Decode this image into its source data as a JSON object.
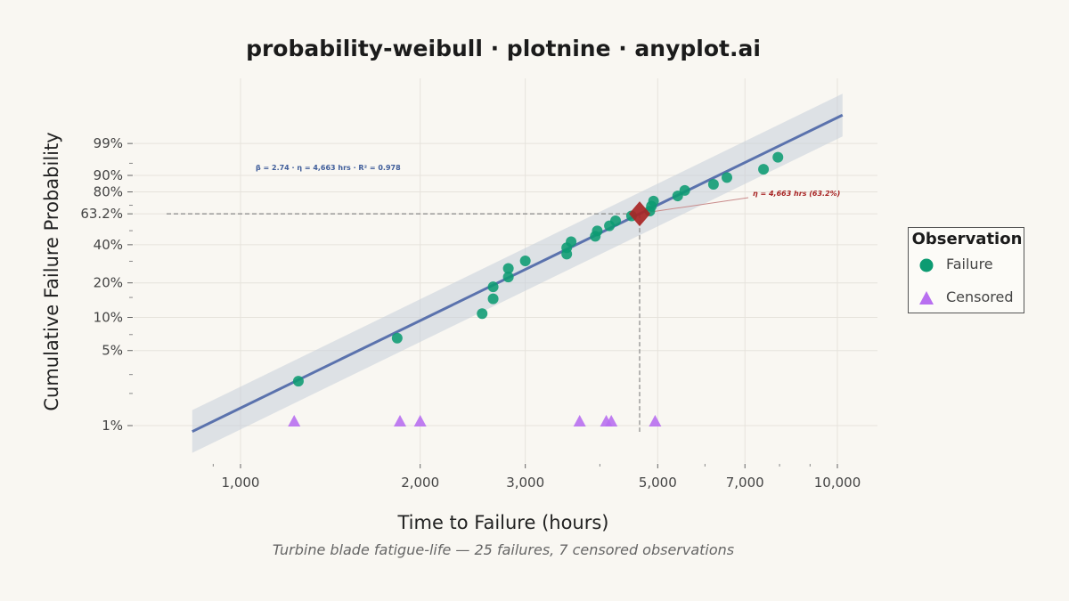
{
  "chart_data": {
    "type": "scatter",
    "title": "probability-weibull · plotnine · anyplot.ai",
    "subtitle": "Turbine blade fatigue-life — 25 failures, 7 censored observations",
    "xlabel": "Time to Failure (hours)",
    "ylabel": "Cumulative Failure Probability",
    "x_scale": "log",
    "y_scale": "weibull",
    "xlim": [
      820,
      10500
    ],
    "ylim_percent": [
      0.5,
      99.9
    ],
    "x_ticks": [
      1000,
      2000,
      3000,
      5000,
      7000,
      10000
    ],
    "x_tick_labels": [
      "1,000",
      "2,000",
      "3,000",
      "5,000",
      "7,000",
      "10,000"
    ],
    "y_ticks": [
      1,
      5,
      10,
      20,
      40,
      63.2,
      80,
      90,
      99
    ],
    "y_tick_labels": [
      "1%",
      "5%",
      "10%",
      "20%",
      "40%",
      "63.2%",
      "80%",
      "90%",
      "99%"
    ],
    "grid": true,
    "legend_title": "Observation",
    "legend_position": "right",
    "colors": {
      "failure": "#0d9b72",
      "censored": "#b86ff0",
      "fit_line": "#5a72ad",
      "band": "#c7cfdb",
      "eta_marker": "#a82525",
      "stats_text": "#3f5d9a",
      "eta_text": "#a82525"
    },
    "series": [
      {
        "name": "Failure",
        "marker": "circle",
        "points": [
          {
            "x": 1250,
            "y": 2.6
          },
          {
            "x": 1830,
            "y": 6.5
          },
          {
            "x": 2540,
            "y": 10.8
          },
          {
            "x": 2650,
            "y": 14.6
          },
          {
            "x": 2650,
            "y": 18.5
          },
          {
            "x": 2810,
            "y": 22.4
          },
          {
            "x": 2810,
            "y": 26.3
          },
          {
            "x": 3000,
            "y": 30.2
          },
          {
            "x": 3520,
            "y": 34.1
          },
          {
            "x": 3520,
            "y": 38.0
          },
          {
            "x": 3580,
            "y": 42.0
          },
          {
            "x": 3930,
            "y": 45.9
          },
          {
            "x": 3960,
            "y": 49.8
          },
          {
            "x": 4150,
            "y": 53.7
          },
          {
            "x": 4250,
            "y": 57.6
          },
          {
            "x": 4520,
            "y": 61.5
          },
          {
            "x": 4850,
            "y": 65.4
          },
          {
            "x": 4880,
            "y": 69.3
          },
          {
            "x": 4920,
            "y": 73.2
          },
          {
            "x": 5400,
            "y": 77.1
          },
          {
            "x": 5550,
            "y": 81.0
          },
          {
            "x": 6200,
            "y": 85.0
          },
          {
            "x": 6530,
            "y": 88.9
          },
          {
            "x": 7520,
            "y": 92.8
          },
          {
            "x": 7950,
            "y": 96.7
          }
        ]
      },
      {
        "name": "Censored",
        "marker": "triangle",
        "points": [
          {
            "x": 1230,
            "y": 1.1
          },
          {
            "x": 1850,
            "y": 1.1
          },
          {
            "x": 2000,
            "y": 1.1
          },
          {
            "x": 3700,
            "y": 1.1
          },
          {
            "x": 4100,
            "y": 1.1
          },
          {
            "x": 4180,
            "y": 1.1
          },
          {
            "x": 4950,
            "y": 1.1
          }
        ]
      }
    ],
    "fit": {
      "beta": 2.74,
      "eta": 4663,
      "r_squared": 0.978,
      "x_range": [
        830,
        10200
      ],
      "stats_label": "β = 2.74  ·  η = 4,663 hrs  ·  R² = 0.978",
      "eta_label": "η = 4,663 hrs (63.2%)",
      "eta_point": {
        "x": 4663,
        "y": 63.2
      }
    }
  }
}
